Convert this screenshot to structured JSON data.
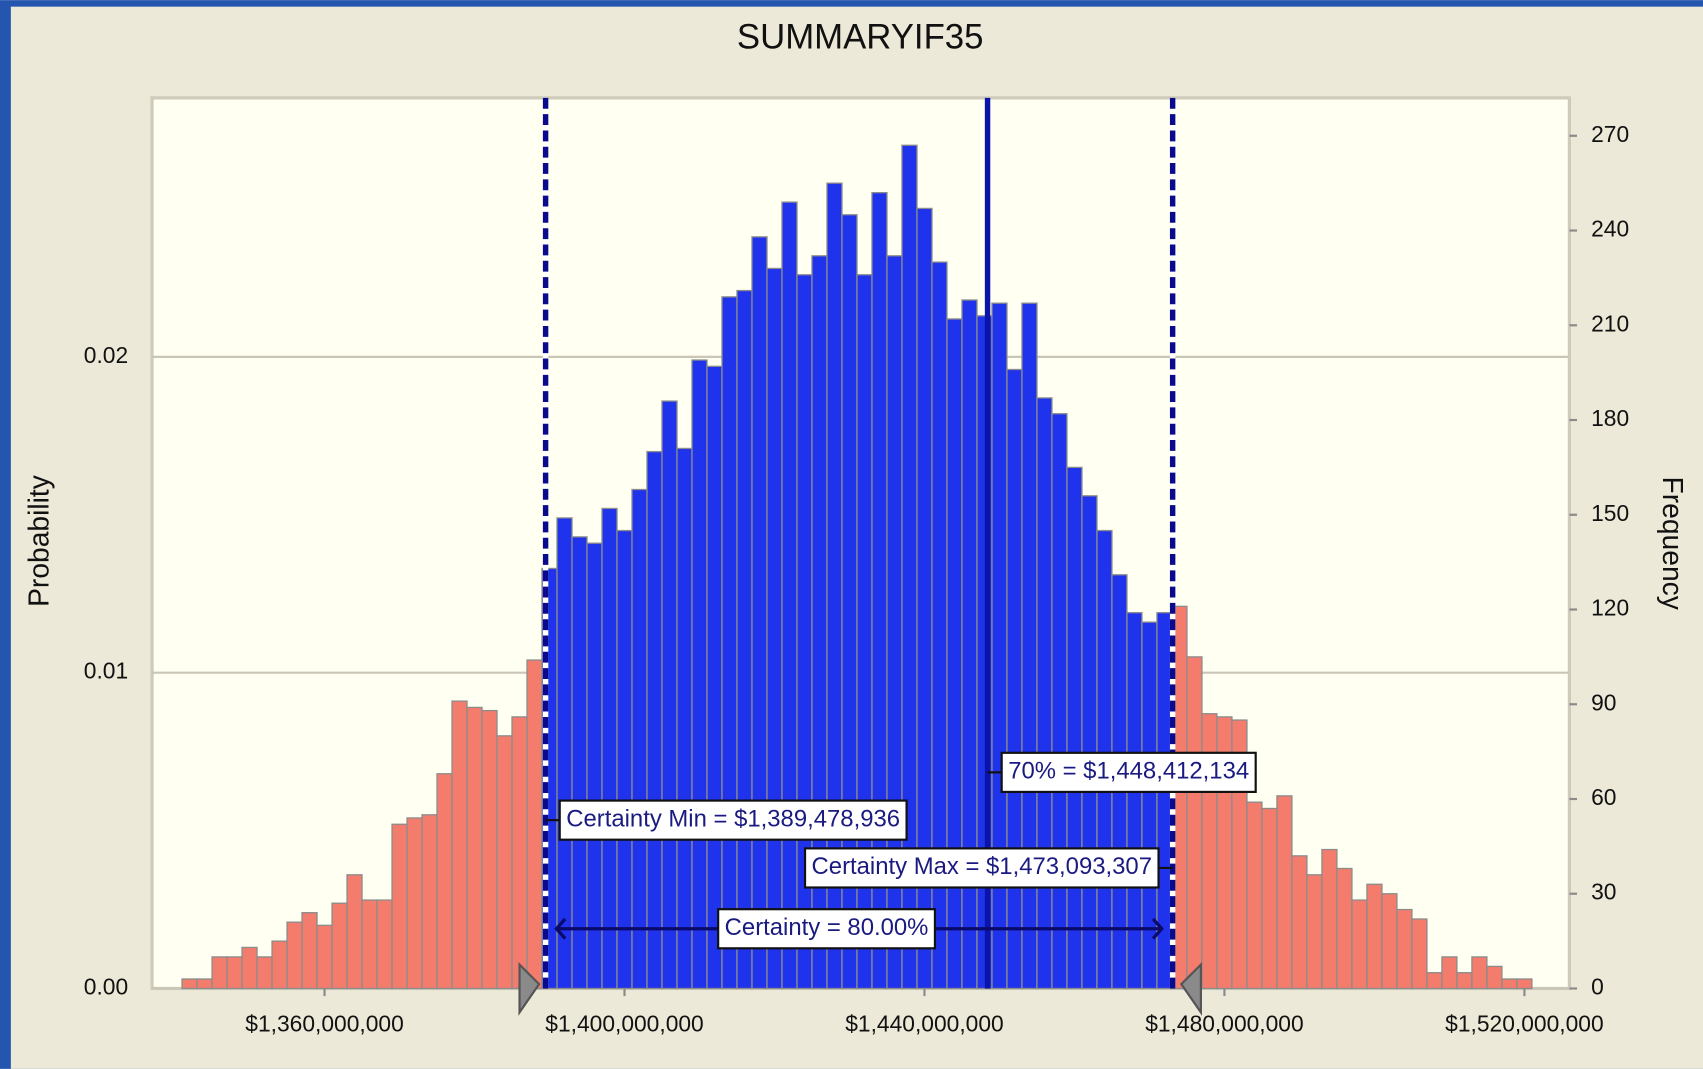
{
  "chart_data": {
    "type": "histogram",
    "title": "SUMMARYIF35",
    "ylabel": "Probability",
    "y2label": "Frequency",
    "bins": [
      1341000000,
      1343000000,
      1345000000,
      1347000000,
      1349000000,
      1351000000,
      1353000000,
      1355000000,
      1357000000,
      1359000000,
      1361000000,
      1363000000,
      1365000000,
      1367000000,
      1369000000,
      1371000000,
      1373000000,
      1375000000,
      1377000000,
      1379000000,
      1381000000,
      1383000000,
      1385000000,
      1387000000,
      1389000000,
      1391000000,
      1393000000,
      1395000000,
      1397000000,
      1399000000,
      1401000000,
      1403000000,
      1405000000,
      1407000000,
      1409000000,
      1411000000,
      1413000000,
      1415000000,
      1417000000,
      1419000000,
      1421000000,
      1423000000,
      1425000000,
      1427000000,
      1429000000,
      1431000000,
      1433000000,
      1435000000,
      1437000000,
      1439000000,
      1441000000,
      1443000000,
      1445000000,
      1447000000,
      1449000000,
      1451000000,
      1453000000,
      1455000000,
      1457000000,
      1459000000,
      1461000000,
      1463000000,
      1465000000,
      1467000000,
      1469000000,
      1471000000,
      1473000000,
      1475000000,
      1477000000,
      1479000000,
      1481000000,
      1483000000,
      1485000000,
      1487000000,
      1489000000,
      1491000000,
      1493000000,
      1495000000,
      1497000000,
      1499000000,
      1501000000,
      1503000000,
      1505000000,
      1507000000,
      1509000000,
      1511000000,
      1513000000,
      1515000000,
      1517000000,
      1519000000,
      1521000000
    ],
    "counts": [
      3,
      3,
      10,
      10,
      13,
      10,
      15,
      21,
      24,
      20,
      27,
      36,
      28,
      28,
      52,
      54,
      55,
      68,
      91,
      89,
      88,
      80,
      86,
      104,
      133,
      149,
      143,
      141,
      152,
      145,
      158,
      170,
      186,
      171,
      199,
      197,
      219,
      221,
      238,
      228,
      249,
      226,
      232,
      255,
      245,
      226,
      252,
      232,
      267,
      247,
      230,
      212,
      218,
      213,
      217,
      196,
      217,
      187,
      182,
      165,
      156,
      145,
      131,
      119,
      116,
      119,
      121,
      105,
      87,
      86,
      85,
      59,
      57,
      61,
      42,
      36,
      44,
      38,
      28,
      33,
      30,
      25,
      22,
      5,
      10,
      5,
      10,
      7,
      3,
      3
    ],
    "axis": "y2",
    "color": "#f47c6c",
    "certainty_color": "#1f32ec",
    "xlim": [
      1337000000,
      1526000000
    ],
    "xticks": [
      {
        "value": 1360000000,
        "label": "$1,360,000,000"
      },
      {
        "value": 1400000000,
        "label": "$1,400,000,000"
      },
      {
        "value": 1440000000,
        "label": "$1,440,000,000"
      },
      {
        "value": 1480000000,
        "label": "$1,480,000,000"
      },
      {
        "value": 1520000000,
        "label": "$1,520,000,000"
      }
    ],
    "ylim": [
      0,
      0.0282
    ],
    "yticks": [
      {
        "value": 0,
        "label": "0.00"
      },
      {
        "value": 0.01,
        "label": "0.01"
      },
      {
        "value": 0.02,
        "label": "0.02"
      }
    ],
    "y2lim": [
      0,
      282
    ],
    "y2ticks": [
      0,
      30,
      60,
      90,
      120,
      150,
      180,
      210,
      240,
      270
    ],
    "grid": true,
    "certainty_min": {
      "value": 1389478936,
      "label": "Certainty Min = $1,389,478,936"
    },
    "certainty_max": {
      "value": 1473093307,
      "label": "Certainty Max = $1,473,093,307"
    },
    "percentile": {
      "value": 1448412134,
      "label": "70% = $1,448,412,134"
    },
    "certainty_label": "Certainty = 80.00%"
  }
}
